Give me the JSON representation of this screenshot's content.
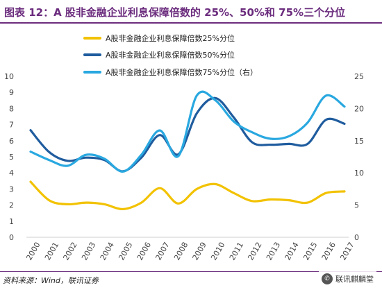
{
  "header": {
    "title": "图表 12：A 股非金融企业利息保障倍数的 25%、50%和 75%三个分位"
  },
  "footer": {
    "source": "资料来源：Wind，联讯证券",
    "watermark_text": "联讯麒麟堂",
    "watermark_logo_icon": "wechat-icon"
  },
  "chart_data": {
    "type": "line",
    "x": [
      "2000",
      "2001",
      "2002",
      "2003",
      "2004",
      "2005",
      "2006",
      "2007",
      "2008",
      "2009",
      "2010",
      "2011",
      "2012",
      "2013",
      "2014",
      "2015",
      "2016",
      "2017"
    ],
    "ylim_left": [
      0,
      10
    ],
    "yticks_left": [
      0,
      1,
      2,
      3,
      4,
      5,
      6,
      7,
      8,
      9,
      10
    ],
    "ylim_right": [
      0,
      25
    ],
    "yticks_right": [
      0,
      5,
      10,
      15,
      20,
      25
    ],
    "grid": false,
    "legend_position": "top-left",
    "series": [
      {
        "name": "A股非金融企业利息保障倍数25%分位",
        "color": "#f2c200",
        "axis": "left",
        "values": [
          3.45,
          2.3,
          2.05,
          2.15,
          2.05,
          1.75,
          2.15,
          3.05,
          2.1,
          3.0,
          3.3,
          2.75,
          2.25,
          2.35,
          2.3,
          2.15,
          2.75,
          2.85
        ]
      },
      {
        "name": "A股非金融企业利息保障倍数50%分位",
        "color": "#1f5c9e",
        "axis": "left",
        "values": [
          6.65,
          5.3,
          4.75,
          4.95,
          4.8,
          4.1,
          4.95,
          6.35,
          5.15,
          7.7,
          8.65,
          7.45,
          5.9,
          5.75,
          5.8,
          5.8,
          7.3,
          7.05
        ]
      },
      {
        "name": "A股非金融企业利息保障倍数75%分位（右）",
        "color": "#29a8e0",
        "axis": "right",
        "values": [
          13.3,
          12.0,
          11.1,
          12.8,
          12.2,
          10.2,
          12.8,
          16.6,
          12.6,
          22.0,
          21.3,
          18.0,
          16.3,
          15.3,
          15.7,
          17.8,
          22.0,
          20.3
        ]
      }
    ]
  }
}
